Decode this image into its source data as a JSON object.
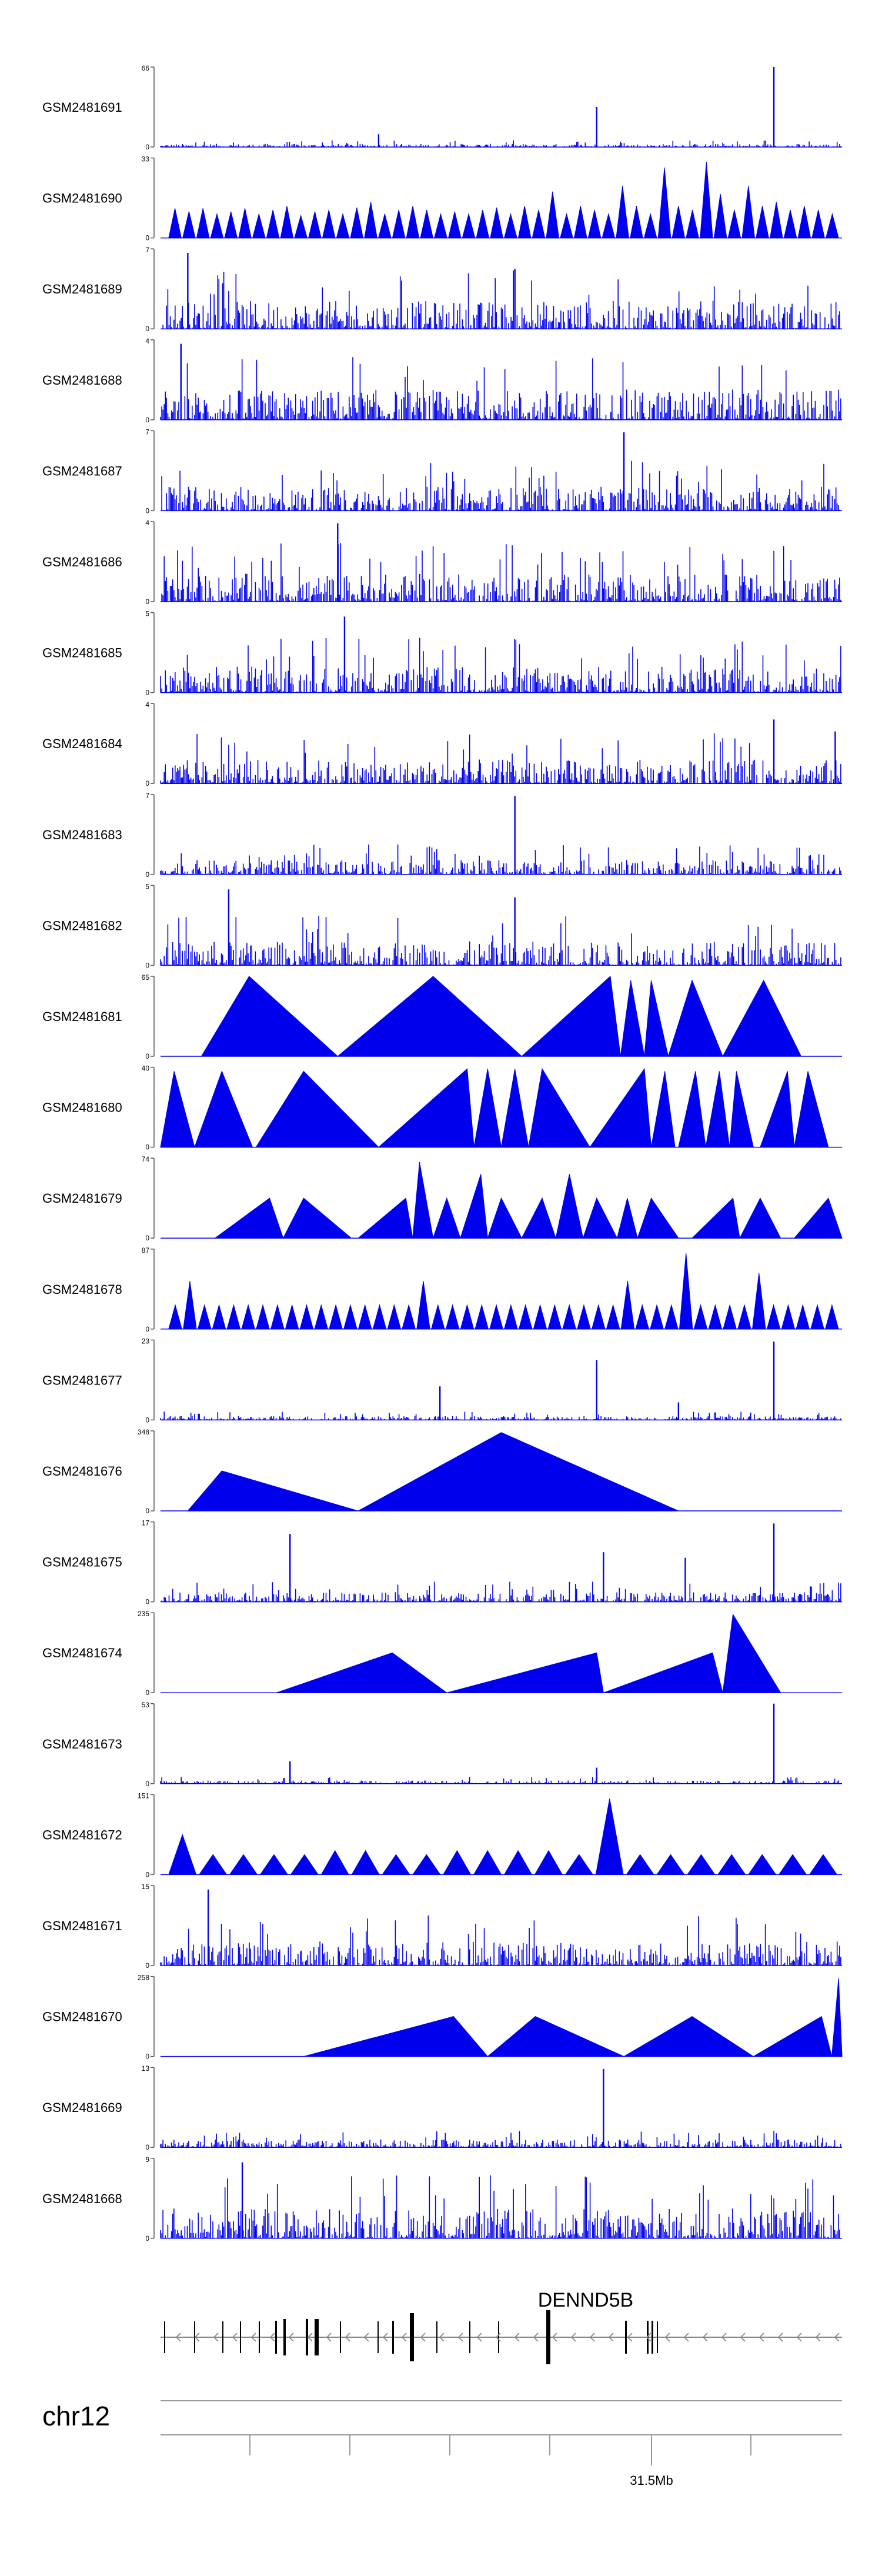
{
  "figure": {
    "chromosome": "chr12",
    "gene_label": "DENND5B"
  },
  "colors": {
    "signal": "#0000ee",
    "axis": "#555555",
    "gene": "#000000",
    "intron": "#888888",
    "ideogram": "#9a9a9a"
  },
  "chart_data": {
    "type": "area",
    "title": "",
    "xlabel": "chr12",
    "x_tick_label": "31.5Mb",
    "gene": "DENND5B",
    "tracks": [
      {
        "name": "GSM2481691",
        "ymax": "66",
        "style": "noise",
        "base": 0.04,
        "spikes": [
          [
            0.32,
            0.16
          ],
          [
            0.64,
            0.5
          ],
          [
            0.9,
            1.0
          ]
        ]
      },
      {
        "name": "GSM2481690",
        "ymax": "33",
        "style": "tri",
        "peaks": [
          0.37,
          0.33,
          0.37,
          0.3,
          0.33,
          0.37,
          0.3,
          0.35,
          0.4,
          0.28,
          0.33,
          0.35,
          0.3,
          0.38,
          0.45,
          0.3,
          0.35,
          0.4,
          0.35,
          0.3,
          0.33,
          0.3,
          0.35,
          0.38,
          0.3,
          0.4,
          0.35,
          0.58,
          0.3,
          0.4,
          0.35,
          0.3,
          0.65,
          0.4,
          0.3,
          0.88,
          0.4,
          0.35,
          0.95,
          0.55,
          0.35,
          0.65,
          0.4,
          0.45,
          0.35,
          0.4,
          0.35,
          0.3
        ]
      },
      {
        "name": "GSM2481689",
        "ymax": "7",
        "style": "noise",
        "base": 0.35,
        "spikes": [
          [
            0.04,
            0.95
          ],
          [
            0.52,
            0.75
          ]
        ]
      },
      {
        "name": "GSM2481688",
        "ymax": "4",
        "style": "noise",
        "base": 0.38,
        "spikes": [
          [
            0.03,
            0.95
          ]
        ]
      },
      {
        "name": "GSM2481687",
        "ymax": "7",
        "style": "noise",
        "base": 0.3,
        "spikes": [
          [
            0.68,
            0.98
          ]
        ]
      },
      {
        "name": "GSM2481686",
        "ymax": "4",
        "style": "noise",
        "base": 0.35,
        "spikes": [
          [
            0.26,
            0.98
          ]
        ]
      },
      {
        "name": "GSM2481685",
        "ymax": "5",
        "style": "noise",
        "base": 0.33,
        "spikes": [
          [
            0.27,
            0.95
          ]
        ]
      },
      {
        "name": "GSM2481684",
        "ymax": "4",
        "style": "noise",
        "base": 0.3,
        "spikes": [
          [
            0.9,
            0.8
          ],
          [
            0.99,
            0.65
          ]
        ]
      },
      {
        "name": "GSM2481683",
        "ymax": "7",
        "style": "noise",
        "base": 0.18,
        "spikes": [
          [
            0.52,
            0.98
          ]
        ]
      },
      {
        "name": "GSM2481682",
        "ymax": "5",
        "style": "noise",
        "base": 0.3,
        "spikes": [
          [
            0.1,
            0.95
          ],
          [
            0.52,
            0.85
          ]
        ]
      },
      {
        "name": "GSM2481681",
        "ymax": "65",
        "style": "tri",
        "segments": [
          [
            0.06,
            0.13,
            0.26,
            1.0
          ],
          [
            0.26,
            0.4,
            0.53,
            1.0
          ],
          [
            0.53,
            0.66,
            0.675,
            1.0
          ],
          [
            0.675,
            0.69,
            0.71,
            0.95
          ],
          [
            0.71,
            0.72,
            0.745,
            0.95
          ],
          [
            0.745,
            0.78,
            0.825,
            0.95
          ],
          [
            0.825,
            0.885,
            0.94,
            0.95
          ]
        ]
      },
      {
        "name": "GSM2481680",
        "ymax": "40",
        "style": "tri",
        "segments": [
          [
            0.0,
            0.02,
            0.05,
            0.95
          ],
          [
            0.05,
            0.09,
            0.135,
            0.95
          ],
          [
            0.14,
            0.21,
            0.32,
            0.95
          ],
          [
            0.32,
            0.45,
            0.46,
            0.98
          ],
          [
            0.46,
            0.48,
            0.5,
            0.98
          ],
          [
            0.5,
            0.52,
            0.54,
            0.98
          ],
          [
            0.54,
            0.56,
            0.63,
            0.98
          ],
          [
            0.63,
            0.71,
            0.72,
            0.98
          ],
          [
            0.72,
            0.74,
            0.755,
            0.95
          ],
          [
            0.76,
            0.785,
            0.8,
            0.95
          ],
          [
            0.8,
            0.82,
            0.835,
            0.95
          ],
          [
            0.835,
            0.845,
            0.87,
            0.95
          ],
          [
            0.88,
            0.92,
            0.93,
            0.95
          ],
          [
            0.93,
            0.95,
            0.98,
            0.95
          ]
        ]
      },
      {
        "name": "GSM2481679",
        "ymax": "74",
        "style": "tri",
        "segments": [
          [
            0.08,
            0.16,
            0.18,
            0.5
          ],
          [
            0.18,
            0.21,
            0.28,
            0.5
          ],
          [
            0.29,
            0.36,
            0.37,
            0.5
          ],
          [
            0.37,
            0.38,
            0.4,
            0.95
          ],
          [
            0.4,
            0.42,
            0.44,
            0.5
          ],
          [
            0.44,
            0.47,
            0.48,
            0.8
          ],
          [
            0.48,
            0.5,
            0.53,
            0.5
          ],
          [
            0.53,
            0.56,
            0.58,
            0.5
          ],
          [
            0.58,
            0.6,
            0.62,
            0.8
          ],
          [
            0.62,
            0.64,
            0.67,
            0.5
          ],
          [
            0.67,
            0.685,
            0.7,
            0.5
          ],
          [
            0.7,
            0.72,
            0.76,
            0.5
          ],
          [
            0.78,
            0.84,
            0.85,
            0.5
          ],
          [
            0.85,
            0.88,
            0.91,
            0.5
          ],
          [
            0.93,
            0.98,
            1.0,
            0.5
          ]
        ]
      },
      {
        "name": "GSM2481678",
        "ymax": "87",
        "style": "tri",
        "peaks": [
          0.3,
          0.6,
          0.3,
          0.3,
          0.3,
          0.3,
          0.3,
          0.3,
          0.3,
          0.3,
          0.3,
          0.3,
          0.3,
          0.3,
          0.3,
          0.3,
          0.3,
          0.6,
          0.3,
          0.3,
          0.3,
          0.3,
          0.3,
          0.3,
          0.3,
          0.3,
          0.3,
          0.3,
          0.3,
          0.3,
          0.3,
          0.6,
          0.3,
          0.3,
          0.3,
          0.95,
          0.3,
          0.3,
          0.3,
          0.3,
          0.7,
          0.3,
          0.3,
          0.3,
          0.3,
          0.3
        ]
      },
      {
        "name": "GSM2481677",
        "ymax": "23",
        "style": "noise",
        "base": 0.05,
        "spikes": [
          [
            0.41,
            0.42
          ],
          [
            0.64,
            0.75
          ],
          [
            0.76,
            0.22
          ],
          [
            0.9,
            0.98
          ]
        ]
      },
      {
        "name": "GSM2481676",
        "ymax": "348",
        "style": "tri",
        "segments": [
          [
            0.04,
            0.09,
            0.29,
            0.5
          ],
          [
            0.29,
            0.5,
            0.76,
            0.98
          ]
        ]
      },
      {
        "name": "GSM2481675",
        "ymax": "17",
        "style": "noise",
        "base": 0.12,
        "spikes": [
          [
            0.19,
            0.85
          ],
          [
            0.65,
            0.62
          ],
          [
            0.77,
            0.55
          ],
          [
            0.9,
            0.98
          ]
        ]
      },
      {
        "name": "GSM2481674",
        "ymax": "235",
        "style": "tri",
        "segments": [
          [
            0.17,
            0.34,
            0.42,
            0.5
          ],
          [
            0.42,
            0.64,
            0.65,
            0.5
          ],
          [
            0.65,
            0.81,
            0.825,
            0.5
          ],
          [
            0.825,
            0.84,
            0.91,
            0.98
          ]
        ]
      },
      {
        "name": "GSM2481673",
        "ymax": "53",
        "style": "noise",
        "base": 0.04,
        "spikes": [
          [
            0.19,
            0.28
          ],
          [
            0.64,
            0.2
          ],
          [
            0.9,
            1.0
          ]
        ]
      },
      {
        "name": "GSM2481672",
        "ymax": "151",
        "style": "tri",
        "peaks": [
          0.5,
          0.25,
          0.25,
          0.25,
          0.25,
          0.3,
          0.3,
          0.25,
          0.25,
          0.3,
          0.3,
          0.3,
          0.3,
          0.25,
          0.95,
          0.25,
          0.25,
          0.25,
          0.25,
          0.25,
          0.25,
          0.25
        ]
      },
      {
        "name": "GSM2481671",
        "ymax": "15",
        "style": "noise",
        "base": 0.3,
        "spikes": [
          [
            0.07,
            0.95
          ]
        ]
      },
      {
        "name": "GSM2481670",
        "ymax": "258",
        "style": "tri",
        "segments": [
          [
            0.21,
            0.43,
            0.48,
            0.5
          ],
          [
            0.48,
            0.55,
            0.68,
            0.5
          ],
          [
            0.68,
            0.78,
            0.87,
            0.5
          ],
          [
            0.87,
            0.97,
            0.985,
            0.5
          ],
          [
            0.985,
            0.995,
            1.0,
            0.98
          ]
        ]
      },
      {
        "name": "GSM2481669",
        "ymax": "13",
        "style": "noise",
        "base": 0.1,
        "spikes": [
          [
            0.65,
            0.98
          ]
        ]
      },
      {
        "name": "GSM2481668",
        "ymax": "9",
        "style": "noise",
        "base": 0.38,
        "spikes": [
          [
            0.12,
            0.95
          ]
        ]
      }
    ]
  }
}
